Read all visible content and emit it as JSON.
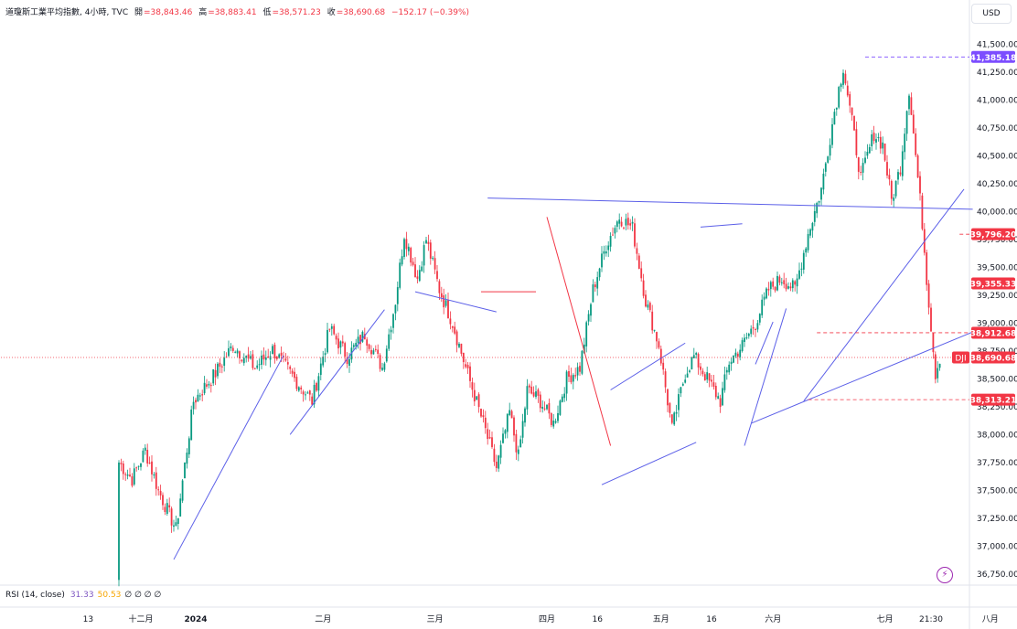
{
  "legend": {
    "symbol": "道瓊斯工業平均指數, 4小時, TVC",
    "open_label": "開",
    "open": "=38,843.46",
    "high_label": "高",
    "high": "=38,883.41",
    "low_label": "低",
    "low": "=38,571.23",
    "close_label": "收",
    "close": "=38,690.68",
    "change": "−152.17 (−0.39%)"
  },
  "currency": "USD",
  "rsi": {
    "label": "RSI (14, close)",
    "v1": "31.33",
    "v2": "50.53",
    "v3": "∅ ∅ ∅ ∅"
  },
  "colors": {
    "up": "#089981",
    "down": "#f23645",
    "trendline": "#5b5fe8",
    "highlight": "#f23645",
    "price_tag": "#7c4dff"
  },
  "icons": [
    "bolt-icon"
  ],
  "chart_data": {
    "type": "candlestick",
    "title": "道瓊斯工業平均指數, 4小時, TVC",
    "ylim": [
      36650,
      41650
    ],
    "y_ticks": [
      {
        "v": 41500,
        "t": "41,500.00"
      },
      {
        "v": 41250,
        "t": "41,250.00"
      },
      {
        "v": 41000,
        "t": "41,000.00"
      },
      {
        "v": 40750,
        "t": "40,750.00"
      },
      {
        "v": 40500,
        "t": "40,500.00"
      },
      {
        "v": 40250,
        "t": "40,250.00"
      },
      {
        "v": 40000,
        "t": "40,000.00"
      },
      {
        "v": 39750,
        "t": "39,750.00"
      },
      {
        "v": 39500,
        "t": "39,500.00"
      },
      {
        "v": 39250,
        "t": "39,250.00"
      },
      {
        "v": 39000,
        "t": "39,000.00"
      },
      {
        "v": 38750,
        "t": "38,750.00"
      },
      {
        "v": 38500,
        "t": "38,500.00"
      },
      {
        "v": 38250,
        "t": "38,250.00"
      },
      {
        "v": 38000,
        "t": "38,000.00"
      },
      {
        "v": 37750,
        "t": "37,750.00"
      },
      {
        "v": 37500,
        "t": "37,500.00"
      },
      {
        "v": 37250,
        "t": "37,250.00"
      },
      {
        "v": 37000,
        "t": "37,000.00"
      },
      {
        "v": 36750,
        "t": "36,750.00"
      }
    ],
    "x_ticks": [
      {
        "t": "13",
        "i": -14
      },
      {
        "t": "十二月",
        "i": 10
      },
      {
        "t": "2024",
        "i": 35,
        "bold": true
      },
      {
        "t": "二月",
        "i": 93
      },
      {
        "t": "三月",
        "i": 144
      },
      {
        "t": "四月",
        "i": 195
      },
      {
        "t": "16",
        "i": 218
      },
      {
        "t": "五月",
        "i": 247
      },
      {
        "t": "16",
        "i": 270
      },
      {
        "t": "六月",
        "i": 298
      },
      {
        "t": "七月",
        "i": 349
      },
      {
        "t": "21:30",
        "i": 370
      },
      {
        "t": "八月",
        "i": 397
      }
    ],
    "price_tags": [
      {
        "v": 41385.18,
        "t": "41,385.18",
        "color": "#7c4dff",
        "dashed_from": 340
      },
      {
        "v": 39796.2,
        "t": "39,796.20",
        "color": "#f23645",
        "dashed_from": 383
      },
      {
        "v": 39355.33,
        "t": "39,355.33",
        "color": "#f23645",
        "dashed_from": 393
      },
      {
        "v": 38912.68,
        "t": "38,912.68",
        "color": "#f23645",
        "dashed_from": 318
      },
      {
        "v": 38690.68,
        "t": "38,690.68",
        "color": "#f23645",
        "symbol": "DJI",
        "dashed_from": -60
      },
      {
        "v": 38313.21,
        "t": "38,313.21",
        "color": "#f23645",
        "dashed_from": 314
      }
    ],
    "trendlines": [
      {
        "i1": 25,
        "v1": 36880,
        "i2": 75,
        "v2": 38710,
        "color": "#5b5fe8"
      },
      {
        "i1": 78,
        "v1": 38000,
        "i2": 121,
        "v2": 39120,
        "color": "#5b5fe8"
      },
      {
        "i1": 135,
        "v1": 39280,
        "i2": 172,
        "v2": 39100,
        "color": "#5b5fe8"
      },
      {
        "i1": 168,
        "v1": 40120,
        "i2": 389,
        "v2": 40020,
        "color": "#5b5fe8"
      },
      {
        "i1": 195,
        "v1": 39950,
        "i2": 224,
        "v2": 37900,
        "color": "#f23645"
      },
      {
        "i1": 165,
        "v1": 39280,
        "i2": 190,
        "v2": 39280,
        "color": "#f23645"
      },
      {
        "i1": 224,
        "v1": 38400,
        "i2": 258,
        "v2": 38820,
        "color": "#5b5fe8"
      },
      {
        "i1": 220,
        "v1": 37550,
        "i2": 263,
        "v2": 37930,
        "color": "#5b5fe8"
      },
      {
        "i1": 265,
        "v1": 39860,
        "i2": 284,
        "v2": 39890,
        "color": "#5b5fe8"
      },
      {
        "i1": 285,
        "v1": 37900,
        "i2": 304,
        "v2": 39130,
        "color": "#5b5fe8"
      },
      {
        "i1": 290,
        "v1": 38630,
        "i2": 298,
        "v2": 39010,
        "color": "#5b5fe8"
      },
      {
        "i1": 288,
        "v1": 38100,
        "i2": 394,
        "v2": 38960,
        "color": "#5b5fe8"
      },
      {
        "i1": 312,
        "v1": 38300,
        "i2": 385,
        "v2": 40200,
        "color": "#5b5fe8"
      }
    ],
    "anchors": [
      [
        -14,
        36650
      ],
      [
        -6,
        38600
      ],
      [
        0,
        37750
      ],
      [
        6,
        37600
      ],
      [
        12,
        37860
      ],
      [
        18,
        37500
      ],
      [
        26,
        37150
      ],
      [
        34,
        38300
      ],
      [
        44,
        38550
      ],
      [
        52,
        38800
      ],
      [
        62,
        38600
      ],
      [
        70,
        38760
      ],
      [
        80,
        38500
      ],
      [
        88,
        38300
      ],
      [
        96,
        38950
      ],
      [
        104,
        38700
      ],
      [
        112,
        38900
      ],
      [
        120,
        38600
      ],
      [
        126,
        39200
      ],
      [
        130,
        39800
      ],
      [
        136,
        39400
      ],
      [
        140,
        39750
      ],
      [
        146,
        39300
      ],
      [
        152,
        39000
      ],
      [
        158,
        38600
      ],
      [
        166,
        38100
      ],
      [
        172,
        37700
      ],
      [
        178,
        38200
      ],
      [
        182,
        37800
      ],
      [
        186,
        38400
      ],
      [
        192,
        38300
      ],
      [
        198,
        38100
      ],
      [
        204,
        38500
      ],
      [
        210,
        38600
      ],
      [
        216,
        39300
      ],
      [
        222,
        39700
      ],
      [
        228,
        39950
      ],
      [
        234,
        39850
      ],
      [
        240,
        39200
      ],
      [
        246,
        38800
      ],
      [
        252,
        38050
      ],
      [
        258,
        38550
      ],
      [
        262,
        38700
      ],
      [
        268,
        38500
      ],
      [
        274,
        38300
      ],
      [
        278,
        38650
      ],
      [
        284,
        38800
      ],
      [
        290,
        39000
      ],
      [
        296,
        39300
      ],
      [
        302,
        39400
      ],
      [
        308,
        39300
      ],
      [
        314,
        39800
      ],
      [
        320,
        40200
      ],
      [
        326,
        40900
      ],
      [
        330,
        41300
      ],
      [
        334,
        40800
      ],
      [
        338,
        40300
      ],
      [
        344,
        40700
      ],
      [
        348,
        40600
      ],
      [
        352,
        40100
      ],
      [
        356,
        40400
      ],
      [
        360,
        41100
      ],
      [
        364,
        40300
      ],
      [
        366,
        39900
      ],
      [
        368,
        39400
      ],
      [
        372,
        38550
      ],
      [
        374,
        38690
      ]
    ],
    "n_candles": 375
  }
}
